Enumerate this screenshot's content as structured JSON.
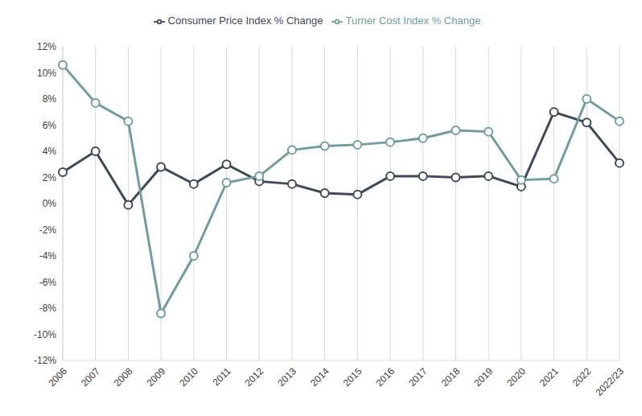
{
  "chart_data": {
    "type": "line",
    "categories": [
      "2006",
      "2007",
      "2008",
      "2009",
      "2010",
      "2011",
      "2012",
      "2013",
      "2014",
      "2015",
      "2016",
      "2017",
      "2018",
      "2019",
      "2020",
      "2021",
      "2022",
      "2022/23"
    ],
    "series": [
      {
        "name": "Consumer Price Index % Change",
        "color": "#3d4a5c",
        "marker": "circle",
        "line_style": "solid",
        "values": [
          2.4,
          4.0,
          -0.1,
          2.8,
          1.5,
          3.0,
          1.7,
          1.5,
          0.8,
          0.7,
          2.1,
          2.1,
          2.0,
          2.1,
          1.3,
          7.0,
          6.2,
          3.1
        ]
      },
      {
        "name": "Turner Cost Index % Change",
        "color": "#6e9e9e",
        "marker": "circle",
        "line_style": "solid",
        "values": [
          10.6,
          7.7,
          6.3,
          -8.4,
          -4.0,
          1.6,
          2.1,
          4.1,
          4.4,
          4.5,
          4.7,
          5.0,
          5.6,
          5.5,
          1.8,
          1.9,
          8.0,
          6.3
        ]
      }
    ],
    "ylim": [
      -12,
      12
    ],
    "yticks": [
      {
        "value": -12,
        "label": "-12%"
      },
      {
        "value": -10,
        "label": "-10%"
      },
      {
        "value": -8,
        "label": "-8%"
      },
      {
        "value": -6,
        "label": "-6%"
      },
      {
        "value": -4,
        "label": "-4%"
      },
      {
        "value": -2,
        "label": "-2%"
      },
      {
        "value": 0,
        "label": "0%"
      },
      {
        "value": 2,
        "label": "2%"
      },
      {
        "value": 4,
        "label": "4%"
      },
      {
        "value": 6,
        "label": "6%"
      },
      {
        "value": 8,
        "label": "8%"
      },
      {
        "value": 10,
        "label": "10%"
      },
      {
        "value": 12,
        "label": "12%"
      }
    ],
    "grid": true,
    "legend": "top"
  }
}
